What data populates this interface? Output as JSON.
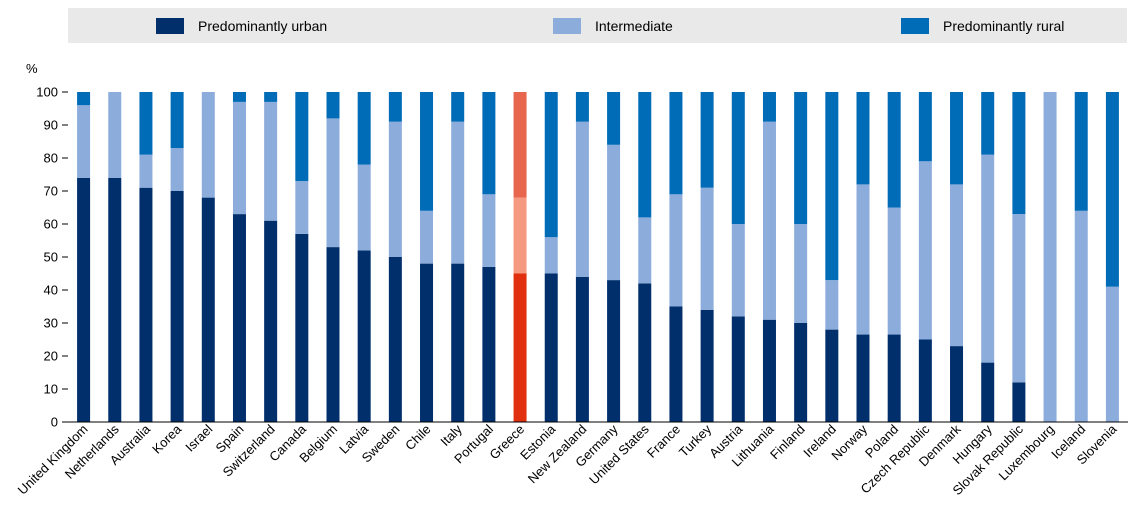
{
  "chart_data": {
    "type": "bar",
    "stacked": true,
    "ylabel": "%",
    "ylim": [
      0,
      100
    ],
    "yticks": [
      0,
      10,
      20,
      30,
      40,
      50,
      60,
      70,
      80,
      90,
      100
    ],
    "grid": false,
    "legend_position": "top",
    "categories": [
      "United Kingdom",
      "Netherlands",
      "Australia",
      "Korea",
      "Israel",
      "Spain",
      "Switzerland",
      "Canada",
      "Belgium",
      "Latvia",
      "Sweden",
      "Chile",
      "Italy",
      "Portugal",
      "Greece",
      "Estonia",
      "New Zealand",
      "Germany",
      "United States",
      "France",
      "Turkey",
      "Austria",
      "Lithuania",
      "Finland",
      "Ireland",
      "Norway",
      "Poland",
      "Czech Republic",
      "Denmark",
      "Hungary",
      "Slovak Republic",
      "Luxembourg",
      "Iceland",
      "Slovenia"
    ],
    "highlight_category": "Greece",
    "series": [
      {
        "name": "Predominantly urban",
        "color": "#002f6c",
        "highlight_color": "#e03010",
        "values": [
          74,
          74,
          71,
          70,
          68,
          63,
          61,
          57,
          53,
          52,
          50,
          48,
          48,
          47,
          45,
          45,
          44,
          43,
          42,
          35,
          34,
          32,
          31,
          30,
          28,
          26.5,
          26.5,
          25,
          23,
          18,
          12,
          0,
          0,
          0
        ]
      },
      {
        "name": "Intermediate",
        "color": "#8cacdc",
        "highlight_color": "#f59a80",
        "values": [
          22,
          26,
          10,
          13,
          32,
          34,
          36,
          16,
          39,
          26,
          41,
          16,
          43,
          22,
          23,
          11,
          47,
          41,
          20,
          34,
          37,
          28,
          60,
          30,
          15,
          45.5,
          38.5,
          54,
          49,
          63,
          51,
          100,
          64,
          41
        ]
      },
      {
        "name": "Predominantly rural",
        "color": "#006bb6",
        "highlight_color": "#e8654e",
        "values": [
          4,
          0,
          19,
          17,
          0,
          3,
          3,
          27,
          8,
          22,
          9,
          36,
          9,
          31,
          32,
          44,
          9,
          16,
          38,
          31,
          29,
          40,
          9,
          40,
          57,
          28,
          35,
          21,
          28,
          19,
          37,
          0,
          36,
          59
        ]
      }
    ]
  }
}
